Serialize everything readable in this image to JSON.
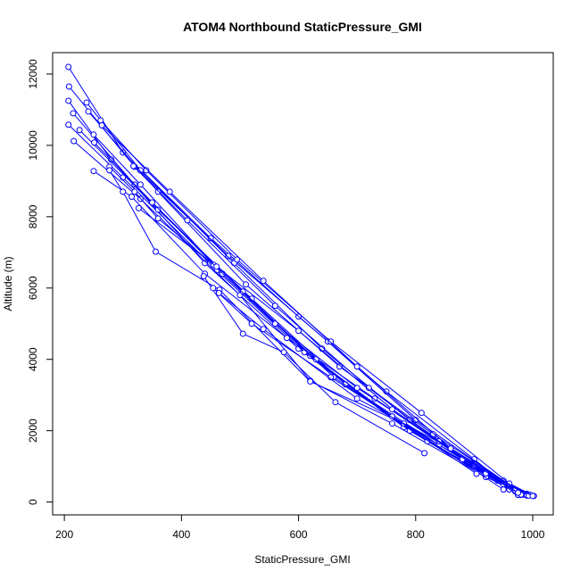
{
  "chart_data": {
    "type": "line",
    "title": "ATOM4 Northbound StaticPressure_GMI",
    "xlabel": "StaticPressure_GMI",
    "ylabel": "Altitude (m)",
    "xlim": [
      180,
      1035
    ],
    "ylim": [
      -360,
      12600
    ],
    "x_ticks": [
      200,
      400,
      600,
      800,
      1000
    ],
    "y_ticks": [
      0,
      2000,
      4000,
      6000,
      8000,
      10000,
      12000
    ],
    "x_tick_labels": [
      "200",
      "400",
      "600",
      "800",
      "1000"
    ],
    "y_tick_labels": [
      "0",
      "2000",
      "4000",
      "6000",
      "8000",
      "10000",
      "12000"
    ],
    "grid": false,
    "legend": "none",
    "series_color": "#0000ff",
    "marker": "open-circle",
    "series": [
      {
        "points": [
          [
            207,
            12200
          ],
          [
            300,
            9800
          ],
          [
            450,
            7400
          ],
          [
            600,
            5200
          ],
          [
            750,
            3100
          ],
          [
            900,
            1200
          ],
          [
            975,
            200
          ],
          [
            990,
            180
          ]
        ]
      },
      {
        "points": [
          [
            208,
            11650
          ],
          [
            320,
            9400
          ],
          [
            480,
            6900
          ],
          [
            650,
            4500
          ],
          [
            800,
            2300
          ],
          [
            950,
            600
          ],
          [
            980,
            200
          ]
        ]
      },
      {
        "points": [
          [
            207,
            11250
          ],
          [
            280,
            9600
          ],
          [
            440,
            6700
          ],
          [
            600,
            4300
          ],
          [
            780,
            2100
          ],
          [
            960,
            350
          ],
          [
            985,
            210
          ]
        ]
      },
      {
        "points": [
          [
            215,
            10900
          ],
          [
            320,
            8900
          ],
          [
            470,
            6400
          ],
          [
            620,
            4100
          ],
          [
            790,
            2000
          ],
          [
            970,
            300
          ],
          [
            993,
            190
          ]
        ]
      },
      {
        "points": [
          [
            207,
            10580
          ],
          [
            300,
            9100
          ],
          [
            460,
            6500
          ],
          [
            610,
            4200
          ],
          [
            760,
            2400
          ],
          [
            940,
            600
          ],
          [
            987,
            220
          ]
        ]
      },
      {
        "points": [
          [
            216,
            10120
          ],
          [
            330,
            8500
          ],
          [
            500,
            5800
          ],
          [
            620,
            3400
          ],
          [
            760,
            2200
          ],
          [
            920,
            700
          ],
          [
            980,
            250
          ]
        ]
      },
      {
        "points": [
          [
            226,
            10430
          ],
          [
            360,
            8200
          ],
          [
            520,
            5700
          ],
          [
            680,
            3300
          ],
          [
            840,
            1600
          ],
          [
            990,
            230
          ]
        ]
      },
      {
        "points": [
          [
            250,
            9280
          ],
          [
            315,
            8560
          ],
          [
            440,
            6400
          ],
          [
            580,
            4600
          ],
          [
            730,
            2900
          ],
          [
            900,
            1000
          ],
          [
            975,
            200
          ]
        ]
      },
      {
        "points": [
          [
            238,
            11200
          ],
          [
            330,
            9300
          ],
          [
            490,
            6700
          ],
          [
            640,
            4300
          ],
          [
            790,
            2300
          ],
          [
            950,
            500
          ],
          [
            996,
            200
          ]
        ]
      },
      {
        "points": [
          [
            241,
            10950
          ],
          [
            360,
            8700
          ],
          [
            510,
            6100
          ],
          [
            670,
            3800
          ],
          [
            830,
            1900
          ],
          [
            985,
            220
          ]
        ]
      },
      {
        "points": [
          [
            250,
            10300
          ],
          [
            330,
            8900
          ],
          [
            470,
            6400
          ],
          [
            630,
            4000
          ],
          [
            790,
            2000
          ],
          [
            970,
            330
          ]
        ]
      },
      {
        "points": [
          [
            251,
            10080
          ],
          [
            350,
            8400
          ],
          [
            505,
            5900
          ],
          [
            660,
            3500
          ],
          [
            820,
            1700
          ],
          [
            980,
            210
          ]
        ]
      },
      {
        "points": [
          [
            262,
            10700
          ],
          [
            340,
            9300
          ],
          [
            495,
            6800
          ],
          [
            655,
            4500
          ],
          [
            810,
            2500
          ],
          [
            960,
            520
          ],
          [
            1002,
            170
          ]
        ]
      },
      {
        "points": [
          [
            264,
            10560
          ],
          [
            380,
            8700
          ],
          [
            540,
            6200
          ],
          [
            700,
            3800
          ],
          [
            860,
            1500
          ],
          [
            990,
            200
          ]
        ]
      },
      {
        "points": [
          [
            277,
            9400
          ],
          [
            320,
            8700
          ],
          [
            360,
            7950
          ],
          [
            455,
            6650
          ],
          [
            560,
            5000
          ],
          [
            700,
            3200
          ],
          [
            840,
            1700
          ],
          [
            990,
            190
          ]
        ]
      },
      {
        "points": [
          [
            277,
            9300
          ],
          [
            300,
            8700
          ],
          [
            356,
            7020
          ],
          [
            465,
            5950
          ],
          [
            620,
            3380
          ],
          [
            780,
            2200
          ],
          [
            950,
            350
          ]
        ]
      },
      {
        "points": [
          [
            318,
            9420
          ],
          [
            410,
            7900
          ],
          [
            560,
            5500
          ],
          [
            720,
            3200
          ],
          [
            880,
            1200
          ],
          [
            993,
            180
          ]
        ]
      },
      {
        "points": [
          [
            327,
            8240
          ],
          [
            460,
            6600
          ],
          [
            600,
            4800
          ],
          [
            760,
            2600
          ],
          [
            920,
            800
          ],
          [
            1000,
            170
          ]
        ]
      },
      {
        "points": [
          [
            438,
            6330
          ],
          [
            505,
            4720
          ],
          [
            575,
            4200
          ],
          [
            663,
            2800
          ],
          [
            815,
            1370
          ]
        ]
      },
      {
        "points": [
          [
            454,
            6000
          ],
          [
            520,
            5000
          ],
          [
            655,
            3500
          ],
          [
            760,
            2400
          ],
          [
            904,
            790
          ]
        ]
      },
      {
        "points": [
          [
            464,
            5860
          ],
          [
            540,
            4850
          ],
          [
            700,
            2900
          ],
          [
            860,
            1500
          ],
          [
            975,
            260
          ]
        ]
      }
    ]
  }
}
